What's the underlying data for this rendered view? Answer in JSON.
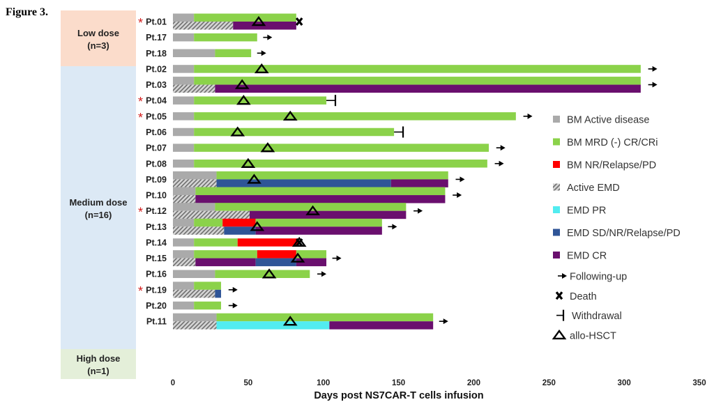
{
  "figure_label": "Figure 3.",
  "chart_data": {
    "type": "swimmer",
    "xlabel": "Days post NS7CAR-T cells infusion",
    "xlim": [
      0,
      350
    ],
    "xticks": [
      0,
      50,
      100,
      150,
      200,
      250,
      300,
      350
    ],
    "groups": [
      {
        "name": "Low dose",
        "n": "(n=3)",
        "patients": [
          "Pt.01",
          "Pt.17",
          "Pt.18"
        ]
      },
      {
        "name": "Medium dose",
        "n": "(n=16)",
        "patients": [
          "Pt.02",
          "Pt.03",
          "Pt.04",
          "Pt.05",
          "Pt.06",
          "Pt.07",
          "Pt.08",
          "Pt.09",
          "Pt.10",
          "Pt.12",
          "Pt.13",
          "Pt.14",
          "Pt.15",
          "Pt.16",
          "Pt.19",
          "Pt.20"
        ]
      },
      {
        "name": "High dose",
        "n": "(n=1)",
        "patients": [
          "Pt.11"
        ]
      }
    ],
    "categories": {
      "bm_active": {
        "label": "BM Active disease",
        "color": "#aaaaaa"
      },
      "bm_mrd": {
        "label": "BM MRD (-) CR/CRi",
        "color": "#8bd24a"
      },
      "bm_nr": {
        "label": "BM NR/Relapse/PD",
        "color": "#ff0000"
      },
      "emd_active": {
        "label": "Active EMD",
        "color": "#aaaaaa"
      },
      "emd_pr": {
        "label": "EMD PR",
        "color": "#52ecf0"
      },
      "emd_sd": {
        "label": "EMD SD/NR/Relapse/PD",
        "color": "#2f5597"
      },
      "emd_cr": {
        "label": "EMD CR",
        "color": "#6a0f6e"
      }
    },
    "endpoints": {
      "follow": "Following-up",
      "death": "Death",
      "withdrawal": "Withdrawal",
      "hsct": "allo-HSCT"
    },
    "legend_order": [
      "bm_active",
      "bm_mrd",
      "bm_nr",
      "emd_active",
      "emd_pr",
      "emd_sd",
      "emd_cr"
    ],
    "endpoint_order": [
      "follow",
      "death",
      "withdrawal",
      "hsct"
    ],
    "patients": [
      {
        "id": "Pt.01",
        "star": true,
        "bm": [
          [
            0,
            14,
            "bm_active"
          ],
          [
            14,
            82,
            "bm_mrd"
          ]
        ],
        "emd": [
          [
            0,
            40,
            "emd_active"
          ],
          [
            40,
            82,
            "emd_cr"
          ]
        ],
        "end": "death",
        "end_day": 84,
        "hsct": 57
      },
      {
        "id": "Pt.17",
        "star": false,
        "bm": [
          [
            0,
            14,
            "bm_active"
          ],
          [
            14,
            56,
            "bm_mrd"
          ]
        ],
        "emd": null,
        "end": "follow",
        "end_day": 66,
        "hsct": null
      },
      {
        "id": "Pt.18",
        "star": false,
        "bm": [
          [
            0,
            28,
            "bm_active"
          ],
          [
            28,
            52,
            "bm_mrd"
          ]
        ],
        "emd": null,
        "end": "follow",
        "end_day": 62,
        "hsct": null
      },
      {
        "id": "Pt.02",
        "star": false,
        "bm": [
          [
            0,
            14,
            "bm_active"
          ],
          [
            14,
            311,
            "bm_mrd"
          ]
        ],
        "emd": null,
        "end": "follow",
        "end_day": 322,
        "hsct": 59
      },
      {
        "id": "Pt.03",
        "star": false,
        "bm": [
          [
            0,
            14,
            "bm_active"
          ],
          [
            14,
            311,
            "bm_mrd"
          ]
        ],
        "emd": [
          [
            0,
            28,
            "emd_active"
          ],
          [
            28,
            311,
            "emd_cr"
          ]
        ],
        "end": "follow",
        "end_day": 322,
        "hsct": 46
      },
      {
        "id": "Pt.04",
        "star": true,
        "bm": [
          [
            0,
            14,
            "bm_active"
          ],
          [
            14,
            102,
            "bm_mrd"
          ]
        ],
        "emd": null,
        "end": "withdrawal",
        "end_day": 108,
        "hsct": 47
      },
      {
        "id": "Pt.05",
        "star": true,
        "bm": [
          [
            0,
            14,
            "bm_active"
          ],
          [
            14,
            228,
            "bm_mrd"
          ]
        ],
        "emd": null,
        "end": "follow",
        "end_day": 239,
        "hsct": 78
      },
      {
        "id": "Pt.06",
        "star": false,
        "bm": [
          [
            0,
            14,
            "bm_active"
          ],
          [
            14,
            147,
            "bm_mrd"
          ]
        ],
        "emd": null,
        "end": "withdrawal",
        "end_day": 153,
        "hsct": 43
      },
      {
        "id": "Pt.07",
        "star": false,
        "bm": [
          [
            0,
            14,
            "bm_active"
          ],
          [
            14,
            210,
            "bm_mrd"
          ]
        ],
        "emd": null,
        "end": "follow",
        "end_day": 221,
        "hsct": 63
      },
      {
        "id": "Pt.08",
        "star": false,
        "bm": [
          [
            0,
            14,
            "bm_active"
          ],
          [
            14,
            209,
            "bm_mrd"
          ]
        ],
        "emd": null,
        "end": "follow",
        "end_day": 220,
        "hsct": 50
      },
      {
        "id": "Pt.09",
        "star": false,
        "bm": [
          [
            0,
            29,
            "bm_active"
          ],
          [
            29,
            183,
            "bm_mrd"
          ]
        ],
        "emd": [
          [
            0,
            29,
            "emd_active"
          ],
          [
            29,
            145,
            "emd_sd"
          ],
          [
            145,
            183,
            "emd_cr"
          ]
        ],
        "end": "follow",
        "end_day": 194,
        "hsct": 54
      },
      {
        "id": "Pt.10",
        "star": false,
        "bm": [
          [
            0,
            15,
            "bm_active"
          ],
          [
            15,
            181,
            "bm_mrd"
          ]
        ],
        "emd": [
          [
            0,
            15,
            "emd_active"
          ],
          [
            15,
            181,
            "emd_cr"
          ]
        ],
        "end": "follow",
        "end_day": 192,
        "hsct": null
      },
      {
        "id": "Pt.12",
        "star": true,
        "bm": [
          [
            0,
            28,
            "bm_active"
          ],
          [
            28,
            155,
            "bm_mrd"
          ]
        ],
        "emd": [
          [
            0,
            51,
            "emd_active"
          ],
          [
            51,
            155,
            "emd_cr"
          ]
        ],
        "end": "follow",
        "end_day": 166,
        "hsct": 93
      },
      {
        "id": "Pt.13",
        "star": false,
        "bm": [
          [
            0,
            14,
            "bm_active"
          ],
          [
            14,
            33,
            "bm_mrd"
          ],
          [
            33,
            55,
            "bm_nr"
          ],
          [
            55,
            139,
            "bm_mrd"
          ]
        ],
        "emd": [
          [
            0,
            34,
            "emd_active"
          ],
          [
            34,
            55,
            "emd_sd"
          ],
          [
            55,
            139,
            "emd_cr"
          ]
        ],
        "end": "follow",
        "end_day": 149,
        "hsct": 56
      },
      {
        "id": "Pt.14",
        "star": false,
        "bm": [
          [
            0,
            14,
            "bm_active"
          ],
          [
            14,
            43,
            "bm_mrd"
          ],
          [
            43,
            83,
            "bm_nr"
          ]
        ],
        "emd": null,
        "end": "death",
        "end_day": 84,
        "hsct": 84
      },
      {
        "id": "Pt.15",
        "star": false,
        "bm": [
          [
            0,
            14,
            "bm_active"
          ],
          [
            14,
            56,
            "bm_mrd"
          ],
          [
            56,
            82,
            "bm_nr"
          ],
          [
            82,
            102,
            "bm_mrd"
          ]
        ],
        "emd": [
          [
            0,
            15,
            "emd_active"
          ],
          [
            15,
            55,
            "emd_cr"
          ],
          [
            55,
            82,
            "emd_sd"
          ],
          [
            82,
            102,
            "emd_cr"
          ]
        ],
        "end": "follow",
        "end_day": 112,
        "hsct": 83
      },
      {
        "id": "Pt.16",
        "star": false,
        "bm": [
          [
            0,
            28,
            "bm_active"
          ],
          [
            28,
            91,
            "bm_mrd"
          ]
        ],
        "emd": null,
        "end": "follow",
        "end_day": 102,
        "hsct": 64
      },
      {
        "id": "Pt.19",
        "star": true,
        "bm": [
          [
            0,
            14,
            "bm_active"
          ],
          [
            14,
            32,
            "bm_mrd"
          ]
        ],
        "emd": [
          [
            0,
            28,
            "emd_active"
          ],
          [
            28,
            32,
            "emd_sd"
          ]
        ],
        "end": "follow",
        "end_day": 43,
        "hsct": null
      },
      {
        "id": "Pt.20",
        "star": false,
        "bm": [
          [
            0,
            14,
            "bm_active"
          ],
          [
            14,
            32,
            "bm_mrd"
          ]
        ],
        "emd": null,
        "end": "follow",
        "end_day": 43,
        "hsct": null
      },
      {
        "id": "Pt.11",
        "star": false,
        "bm": [
          [
            0,
            29,
            "bm_active"
          ],
          [
            29,
            173,
            "bm_mrd"
          ]
        ],
        "emd": [
          [
            0,
            29,
            "emd_active"
          ],
          [
            29,
            104,
            "emd_pr"
          ],
          [
            104,
            173,
            "emd_cr"
          ]
        ],
        "end": "follow",
        "end_day": 183,
        "hsct": 78
      }
    ]
  }
}
